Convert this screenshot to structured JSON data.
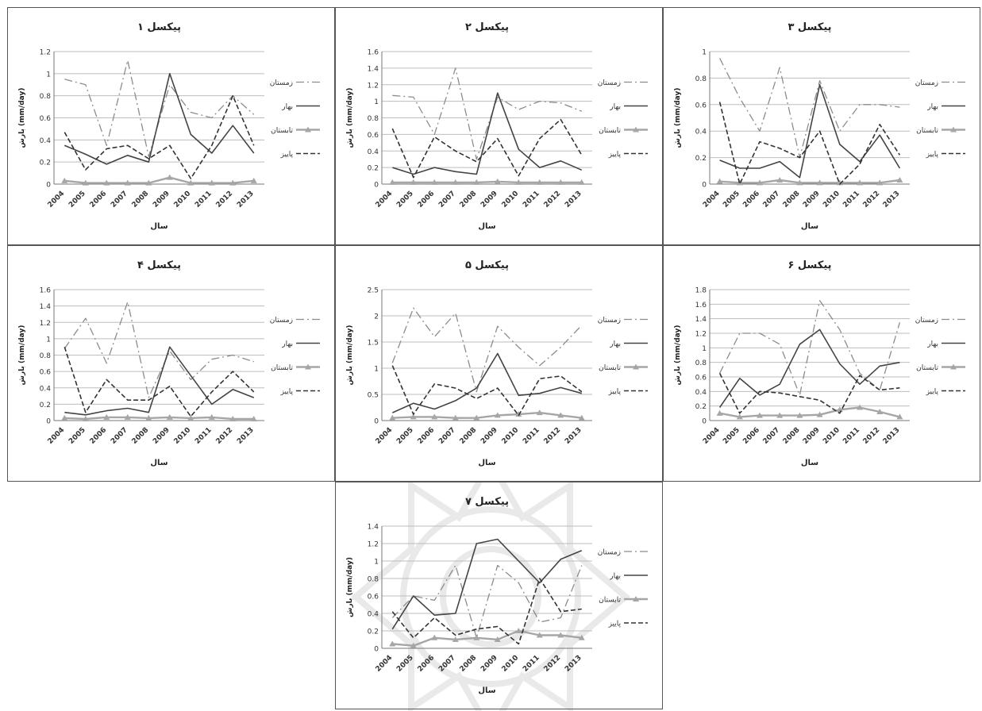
{
  "series_styles": [
    {
      "dash": "10 4 2 4",
      "stroke": "#8c8c8c",
      "width": 1.3,
      "marker": false
    },
    {
      "dash": "",
      "stroke": "#444444",
      "width": 1.6,
      "marker": false
    },
    {
      "dash": "",
      "stroke": "#a6a6a6",
      "width": 2.4,
      "marker": true
    },
    {
      "dash": "6 3",
      "stroke": "#333333",
      "width": 1.6,
      "marker": false
    }
  ],
  "chart_data": [
    {
      "type": "line",
      "title": "پیکسل ۱",
      "xlabel": "سال",
      "ylabel": "بارش (mm/day)",
      "categories": [
        "2004",
        "2005",
        "2006",
        "2007",
        "2008",
        "2009",
        "2010",
        "2011",
        "2012",
        "2013"
      ],
      "ylim": [
        0,
        1.2
      ],
      "yticks": [
        "0",
        "0.2",
        "0.4",
        "0.6",
        "0.8",
        "1",
        "1.2"
      ],
      "grid": true,
      "legend": "right",
      "series": [
        {
          "name": "زمستان",
          "values": [
            0.95,
            0.9,
            0.35,
            1.12,
            0.25,
            0.9,
            0.65,
            0.6,
            0.8,
            0.63
          ]
        },
        {
          "name": "بهار",
          "values": [
            0.35,
            0.27,
            0.18,
            0.26,
            0.2,
            1.0,
            0.45,
            0.28,
            0.53,
            0.28
          ]
        },
        {
          "name": "تابستان",
          "values": [
            0.03,
            0.01,
            0.01,
            0.01,
            0.01,
            0.06,
            0.01,
            0.01,
            0.01,
            0.03
          ]
        },
        {
          "name": "پاییز",
          "values": [
            0.47,
            0.13,
            0.32,
            0.35,
            0.23,
            0.35,
            0.05,
            0.35,
            0.8,
            0.35
          ]
        }
      ]
    },
    {
      "type": "line",
      "title": "پیکسل ۲",
      "xlabel": "سال",
      "ylabel": "بارش (mm/day)",
      "categories": [
        "2004",
        "2005",
        "2006",
        "2007",
        "2008",
        "2009",
        "2010",
        "2011",
        "2012",
        "2013"
      ],
      "ylim": [
        0,
        1.6
      ],
      "yticks": [
        "0",
        "0.2",
        "0.4",
        "0.6",
        "0.8",
        "1",
        "1.2",
        "1.4",
        "1.6"
      ],
      "grid": true,
      "legend": "right",
      "series": [
        {
          "name": "زمستان",
          "values": [
            1.07,
            1.05,
            0.6,
            1.4,
            0.3,
            1.05,
            0.9,
            1.0,
            0.98,
            0.88
          ]
        },
        {
          "name": "بهار",
          "values": [
            0.2,
            0.12,
            0.2,
            0.15,
            0.12,
            1.1,
            0.42,
            0.2,
            0.28,
            0.17
          ]
        },
        {
          "name": "تابستان",
          "values": [
            0.02,
            0.02,
            0.02,
            0.02,
            0.02,
            0.03,
            0.02,
            0.02,
            0.02,
            0.02
          ]
        },
        {
          "name": "پاییز",
          "values": [
            0.67,
            0.08,
            0.57,
            0.4,
            0.27,
            0.55,
            0.1,
            0.55,
            0.78,
            0.35
          ]
        }
      ]
    },
    {
      "type": "line",
      "title": "پیکسل ۳",
      "xlabel": "سال",
      "ylabel": "بارش (mm/day)",
      "categories": [
        "2004",
        "2005",
        "2006",
        "2007",
        "2008",
        "2009",
        "2010",
        "2011",
        "2012",
        "2013"
      ],
      "ylim": [
        0,
        1
      ],
      "yticks": [
        "0",
        "0.2",
        "0.4",
        "0.6",
        "0.8",
        "1"
      ],
      "grid": true,
      "legend": "right",
      "series": [
        {
          "name": "زمستان",
          "values": [
            0.95,
            0.65,
            0.4,
            0.88,
            0.2,
            0.78,
            0.4,
            0.6,
            0.6,
            0.58
          ]
        },
        {
          "name": "بهار",
          "values": [
            0.18,
            0.12,
            0.12,
            0.17,
            0.05,
            0.75,
            0.3,
            0.17,
            0.37,
            0.12
          ]
        },
        {
          "name": "تابستان",
          "values": [
            0.02,
            0.01,
            0.01,
            0.03,
            0.01,
            0.01,
            0.01,
            0.01,
            0.01,
            0.03
          ]
        },
        {
          "name": "پاییز",
          "values": [
            0.62,
            0.0,
            0.32,
            0.27,
            0.2,
            0.4,
            0.0,
            0.15,
            0.45,
            0.22
          ]
        }
      ]
    },
    {
      "type": "line",
      "title": "پیکسل ۴",
      "xlabel": "سال",
      "ylabel": "بارش (mm/day)",
      "categories": [
        "2004",
        "2005",
        "2006",
        "2007",
        "2008",
        "2009",
        "2010",
        "2011",
        "2012",
        "2013"
      ],
      "ylim": [
        0,
        1.6
      ],
      "yticks": [
        "0",
        "0.2",
        "0.4",
        "0.6",
        "0.8",
        "1",
        "1.2",
        "1.4",
        "1.6"
      ],
      "grid": true,
      "legend": "right",
      "series": [
        {
          "name": "زمستان",
          "values": [
            0.88,
            1.25,
            0.7,
            1.45,
            0.28,
            0.85,
            0.5,
            0.75,
            0.8,
            0.72
          ]
        },
        {
          "name": "بهار",
          "values": [
            0.1,
            0.07,
            0.12,
            0.15,
            0.1,
            0.9,
            0.55,
            0.2,
            0.38,
            0.28
          ]
        },
        {
          "name": "تابستان",
          "values": [
            0.03,
            0.02,
            0.04,
            0.04,
            0.03,
            0.04,
            0.03,
            0.04,
            0.02,
            0.02
          ]
        },
        {
          "name": "پاییز",
          "values": [
            0.9,
            0.1,
            0.5,
            0.25,
            0.25,
            0.42,
            0.05,
            0.35,
            0.6,
            0.35
          ]
        }
      ]
    },
    {
      "type": "line",
      "title": "پیکسل ۵",
      "xlabel": "سال",
      "ylabel": "بارش (mm/day)",
      "categories": [
        "2004",
        "2005",
        "2006",
        "2007",
        "2008",
        "2009",
        "2010",
        "2011",
        "2012",
        "2013"
      ],
      "ylim": [
        0,
        2.5
      ],
      "yticks": [
        "0",
        "0.5",
        "1",
        "1.5",
        "2",
        "2.5"
      ],
      "grid": true,
      "legend": "right",
      "series": [
        {
          "name": "زمستان",
          "values": [
            1.1,
            2.15,
            1.6,
            2.05,
            0.55,
            1.8,
            1.4,
            1.05,
            1.4,
            1.82
          ]
        },
        {
          "name": "بهار",
          "values": [
            0.15,
            0.33,
            0.22,
            0.38,
            0.62,
            1.28,
            0.48,
            0.52,
            0.63,
            0.52
          ]
        },
        {
          "name": "تابستان",
          "values": [
            0.05,
            0.07,
            0.07,
            0.05,
            0.05,
            0.1,
            0.12,
            0.15,
            0.1,
            0.05
          ]
        },
        {
          "name": "پاییز",
          "values": [
            1.05,
            0.12,
            0.7,
            0.62,
            0.42,
            0.62,
            0.1,
            0.8,
            0.85,
            0.55
          ]
        }
      ]
    },
    {
      "type": "line",
      "title": "پیکسل ۶",
      "xlabel": "سال",
      "ylabel": "بارش (mm/day)",
      "categories": [
        "2004",
        "2005",
        "2006",
        "2007",
        "2008",
        "2009",
        "2010",
        "2011",
        "2012",
        "2013"
      ],
      "ylim": [
        0,
        1.8
      ],
      "yticks": [
        "0",
        "0.2",
        "0.4",
        "0.6",
        "0.8",
        "1",
        "1.2",
        "1.4",
        "1.6",
        "1.8"
      ],
      "grid": true,
      "legend": "right",
      "series": [
        {
          "name": "زمستان",
          "values": [
            0.65,
            1.2,
            1.2,
            1.05,
            0.35,
            1.65,
            1.25,
            0.65,
            0.42,
            1.35
          ]
        },
        {
          "name": "بهار",
          "values": [
            0.18,
            0.58,
            0.35,
            0.5,
            1.05,
            1.25,
            0.78,
            0.5,
            0.75,
            0.8
          ]
        },
        {
          "name": "تابستان",
          "values": [
            0.1,
            0.05,
            0.07,
            0.07,
            0.07,
            0.08,
            0.15,
            0.18,
            0.12,
            0.05
          ]
        },
        {
          "name": "پاییز",
          "values": [
            0.65,
            0.1,
            0.4,
            0.38,
            0.33,
            0.28,
            0.1,
            0.62,
            0.42,
            0.45
          ]
        }
      ]
    },
    {
      "type": "line",
      "title": "پیکسل ۷",
      "xlabel": "سال",
      "ylabel": "بارش (mm/day)",
      "categories": [
        "2004",
        "2005",
        "2006",
        "2007",
        "2008",
        "2009",
        "2010",
        "2011",
        "2012",
        "2013"
      ],
      "ylim": [
        0,
        1.4
      ],
      "yticks": [
        "0",
        "0.2",
        "0.4",
        "0.6",
        "0.8",
        "1",
        "1.2",
        "1.4"
      ],
      "grid": true,
      "legend": "right",
      "series": [
        {
          "name": "زمستان",
          "values": [
            0.35,
            0.6,
            0.55,
            0.95,
            0.12,
            0.95,
            0.75,
            0.3,
            0.35,
            0.95
          ]
        },
        {
          "name": "بهار",
          "values": [
            0.22,
            0.6,
            0.38,
            0.4,
            1.2,
            1.25,
            1.0,
            0.75,
            1.02,
            1.12
          ]
        },
        {
          "name": "تابستان",
          "values": [
            0.05,
            0.03,
            0.12,
            0.1,
            0.12,
            0.1,
            0.2,
            0.15,
            0.15,
            0.12
          ]
        },
        {
          "name": "پاییز",
          "values": [
            0.42,
            0.12,
            0.35,
            0.15,
            0.22,
            0.25,
            0.05,
            0.8,
            0.42,
            0.45
          ]
        }
      ]
    }
  ]
}
